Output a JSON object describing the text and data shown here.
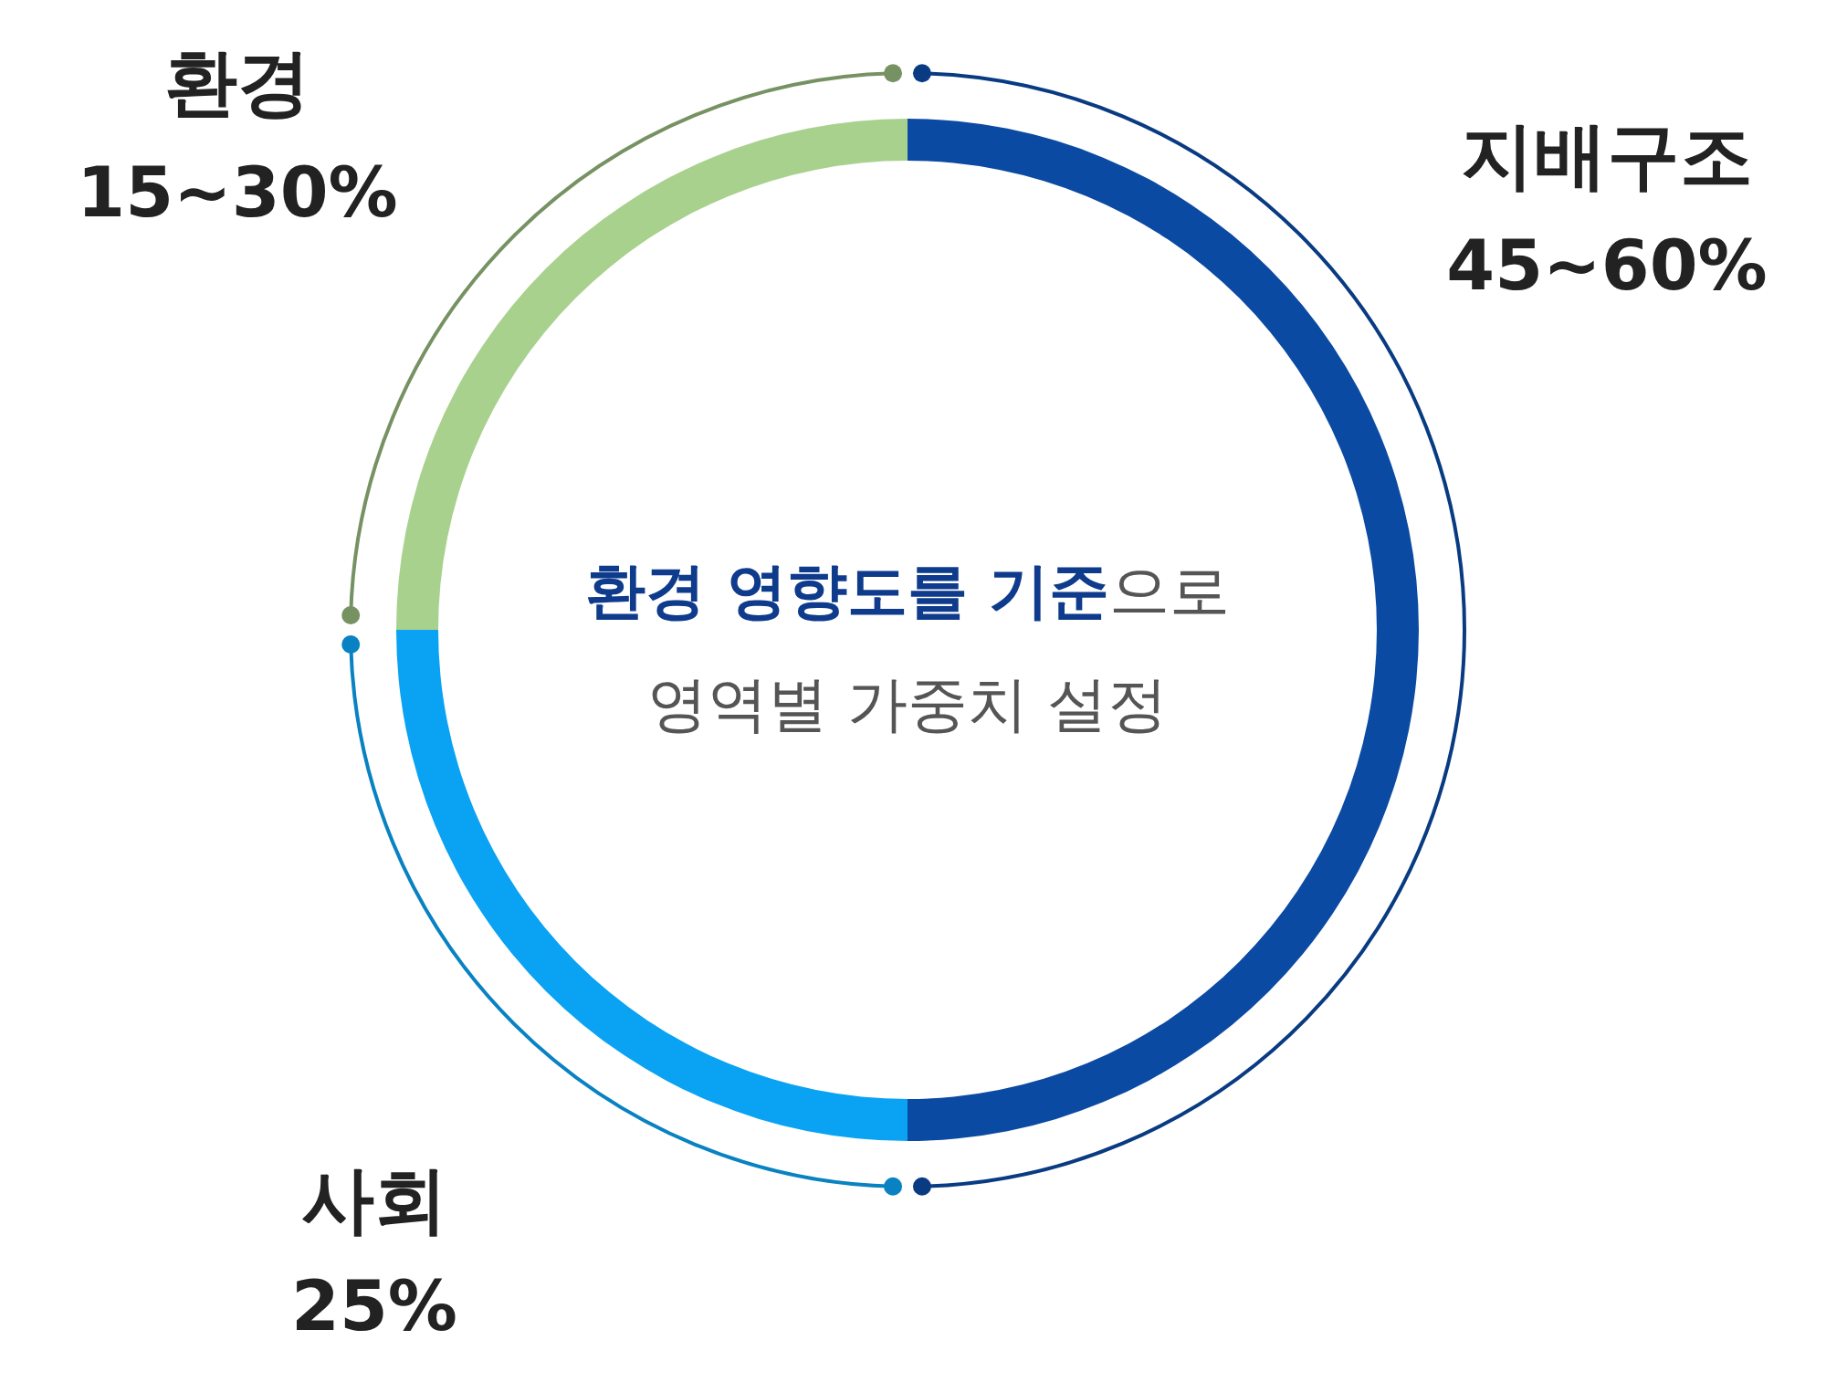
{
  "chart_data": {
    "type": "donut",
    "title": "**환경 영향도를 기준**으로",
    "subtitle": "영역별 가중치 설정",
    "categories": [
      "지배구조",
      "사회",
      "환경"
    ],
    "values": [
      50,
      25,
      25
    ],
    "annotations": [
      "45~60%",
      "25%",
      "15~30%"
    ],
    "colors": [
      "#0b4aa2",
      "#0aa2f2",
      "#a9d18e"
    ]
  }
}
